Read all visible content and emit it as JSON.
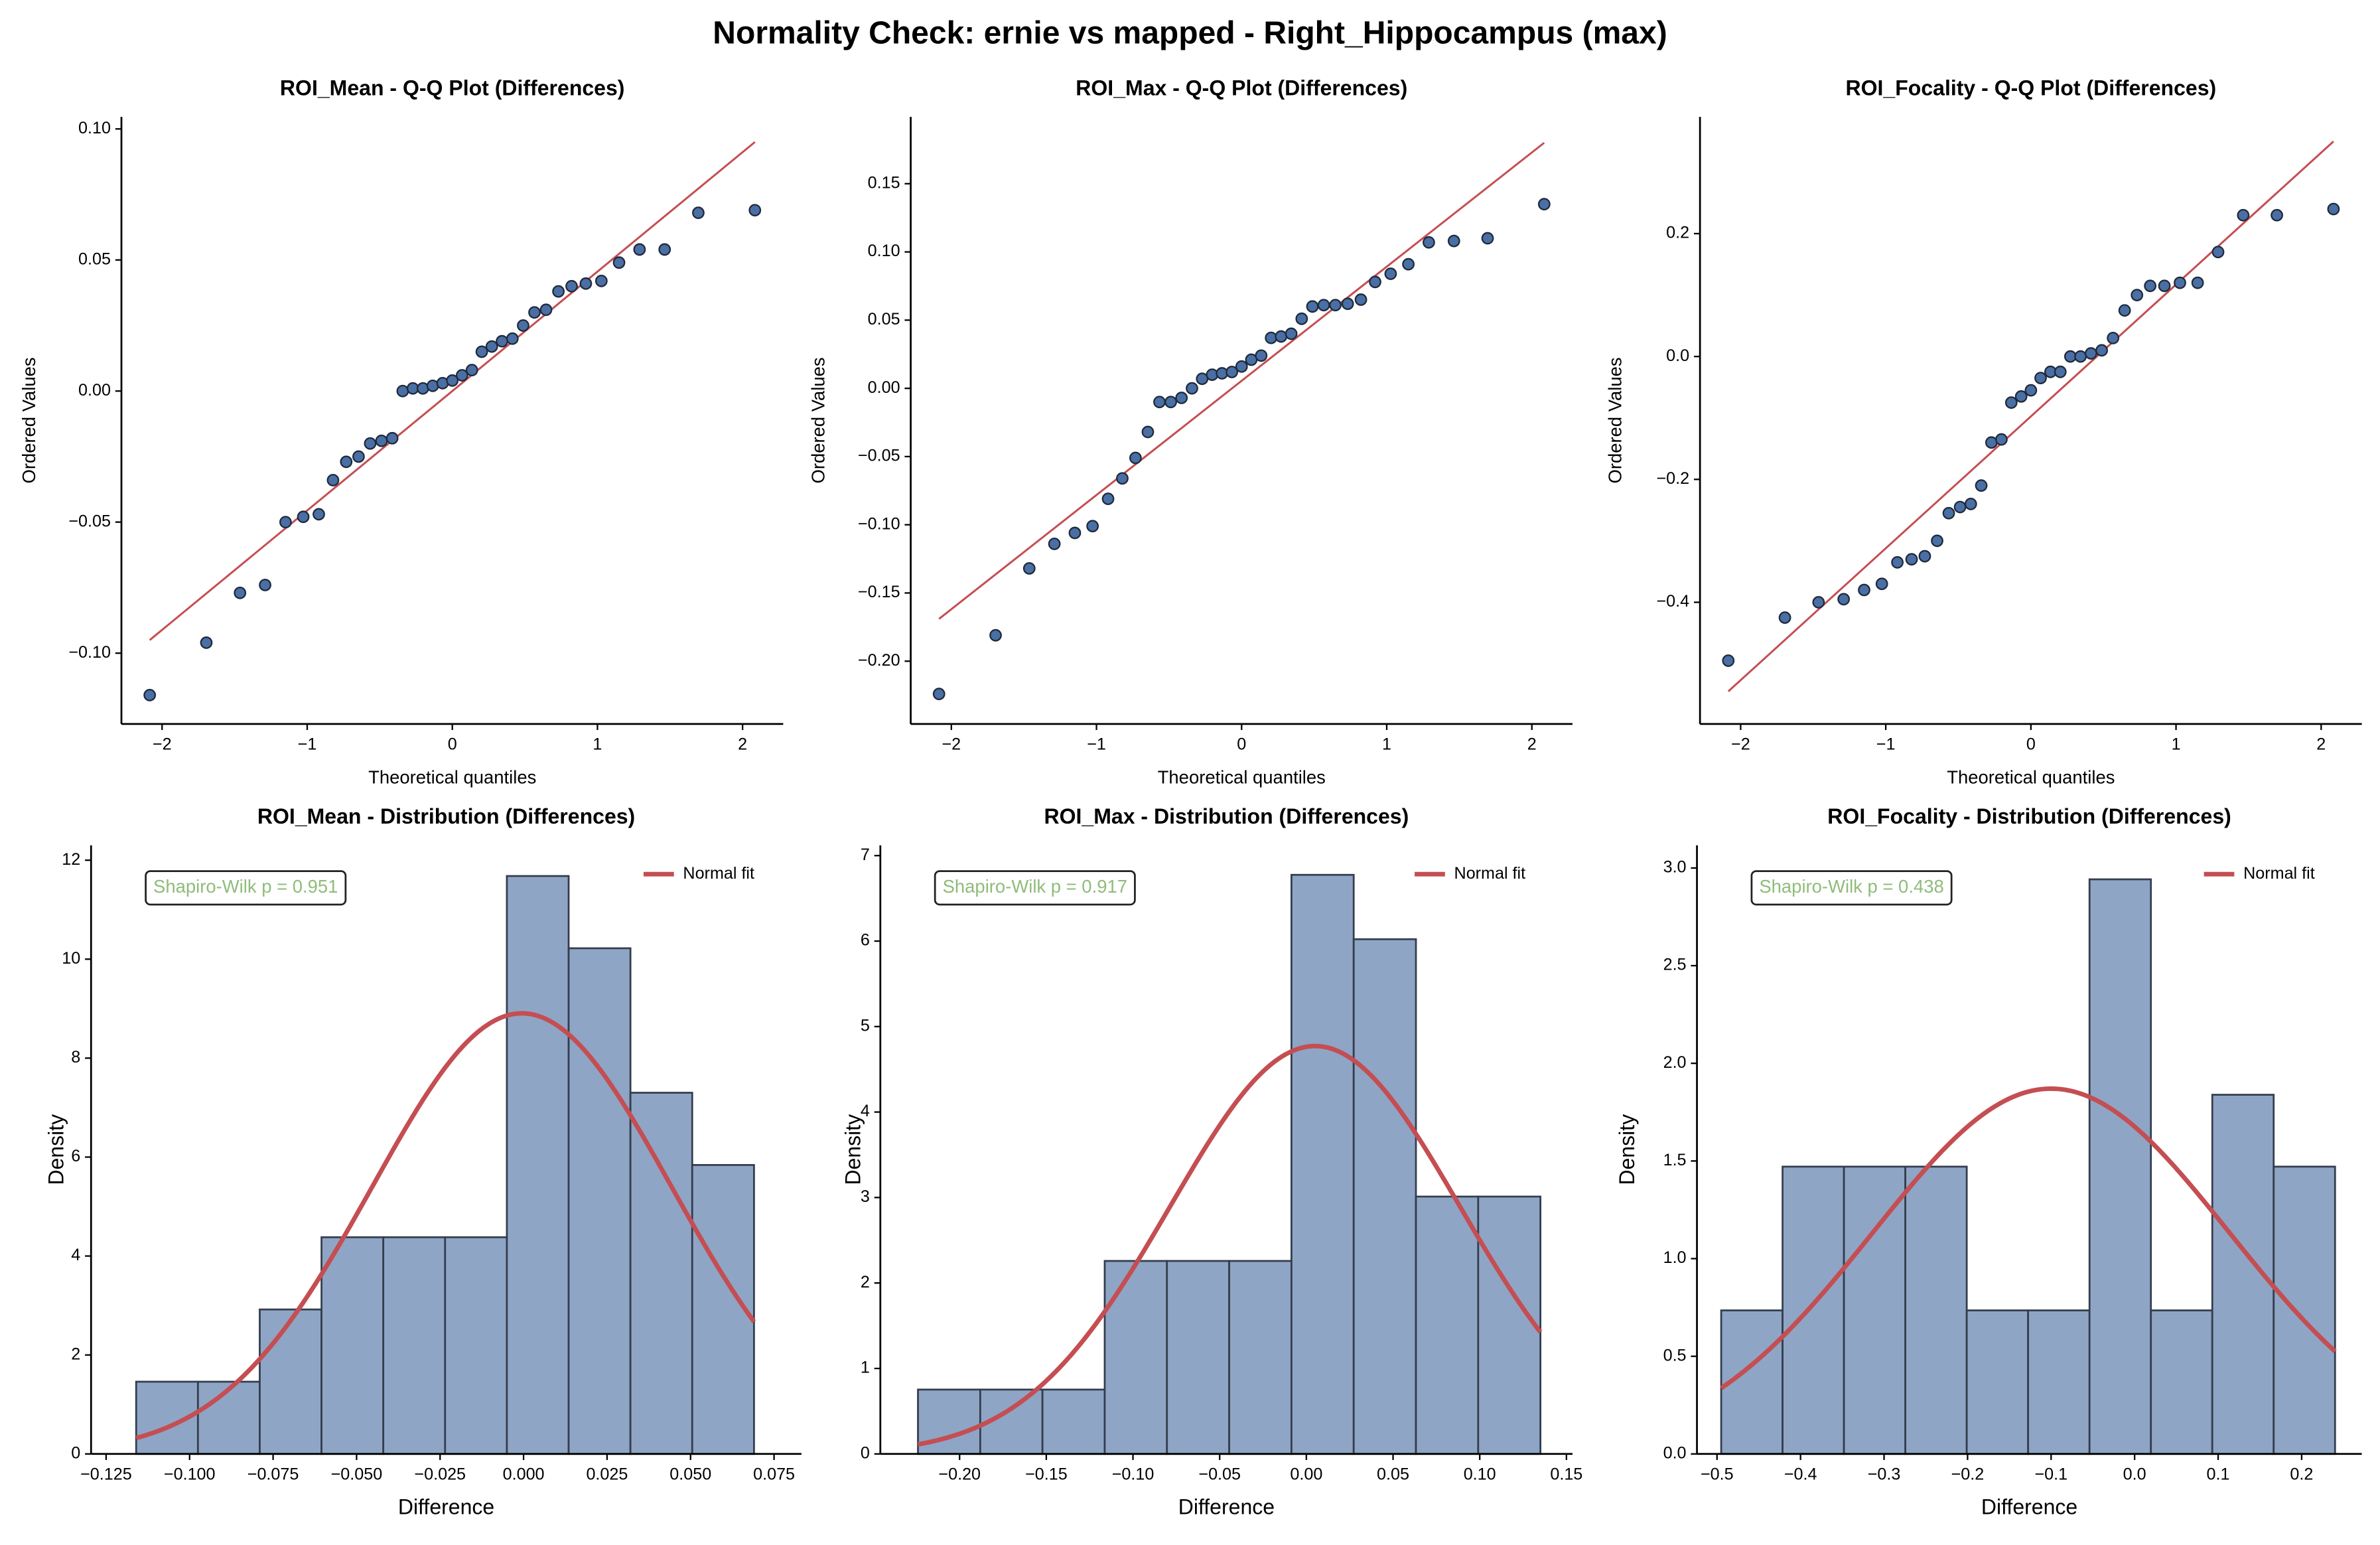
{
  "title": "Normality Check: ernie vs mapped - Right_Hippocampus (max)",
  "chart_data": [
    {
      "type": "qq",
      "title": "ROI_Mean - Q-Q Plot (Differences)",
      "xlabel": "Theoretical quantiles",
      "ylabel": "Ordered Values",
      "x": [
        -2.085,
        -1.695,
        -1.463,
        -1.29,
        -1.149,
        -1.027,
        -0.92,
        -0.822,
        -0.731,
        -0.646,
        -0.566,
        -0.488,
        -0.414,
        -0.342,
        -0.272,
        -0.203,
        -0.135,
        -0.067,
        0,
        0.067,
        0.135,
        0.203,
        0.272,
        0.342,
        0.414,
        0.488,
        0.566,
        0.646,
        0.731,
        0.822,
        0.92,
        1.027,
        1.149,
        1.29,
        1.463,
        1.695,
        2.085
      ],
      "values": [
        -0.116,
        -0.096,
        -0.077,
        -0.074,
        -0.05,
        -0.048,
        -0.047,
        -0.034,
        -0.027,
        -0.025,
        -0.02,
        -0.019,
        -0.018,
        0,
        0.001,
        0.001,
        0.002,
        0.003,
        0.004,
        0.006,
        0.008,
        0.015,
        0.017,
        0.019,
        0.02,
        0.025,
        0.03,
        0.031,
        0.038,
        0.04,
        0.041,
        0.042,
        0.049,
        0.054,
        0.054,
        0.068,
        0.069
      ],
      "fit_x": [
        -2.085,
        2.085
      ],
      "fit_values": [
        -0.095,
        0.095
      ],
      "color": "#4a6fa5",
      "fit_color": "#c44e52",
      "xlim": [
        -2.28,
        2.28
      ],
      "ylim": [
        -0.127,
        0.1046
      ],
      "xticks": [
        {
          "value": -2,
          "label": "−2"
        },
        {
          "value": -1,
          "label": "−1"
        },
        0,
        1,
        2
      ],
      "yticks": [
        {
          "value": -0.1,
          "label": "−0.10"
        },
        {
          "value": -0.05,
          "label": "−0.05"
        },
        {
          "value": 0,
          "label": "0.00"
        },
        0.05,
        {
          "value": 0.1,
          "label": "0.10"
        }
      ]
    },
    {
      "type": "qq",
      "title": "ROI_Max - Q-Q Plot (Differences)",
      "xlabel": "Theoretical quantiles",
      "ylabel": "Ordered Values",
      "x": [
        -2.085,
        -1.695,
        -1.463,
        -1.29,
        -1.149,
        -1.027,
        -0.92,
        -0.822,
        -0.731,
        -0.646,
        -0.566,
        -0.488,
        -0.414,
        -0.342,
        -0.272,
        -0.203,
        -0.135,
        -0.067,
        0,
        0.067,
        0.135,
        0.203,
        0.272,
        0.342,
        0.414,
        0.488,
        0.566,
        0.646,
        0.731,
        0.822,
        0.92,
        1.027,
        1.149,
        1.29,
        1.463,
        1.695,
        2.085
      ],
      "values": [
        -0.224,
        -0.181,
        -0.132,
        -0.114,
        -0.106,
        -0.101,
        -0.081,
        -0.066,
        -0.051,
        -0.032,
        -0.01,
        -0.01,
        -0.007,
        0,
        0.007,
        0.01,
        0.011,
        0.012,
        0.016,
        0.021,
        0.024,
        0.037,
        0.038,
        0.04,
        0.051,
        0.06,
        0.061,
        0.061,
        0.062,
        0.065,
        0.078,
        0.084,
        0.091,
        0.107,
        0.108,
        0.11,
        0.135
      ],
      "fit_x": [
        -2.085,
        2.085
      ],
      "fit_values": [
        -0.169,
        0.18
      ],
      "color": "#4a6fa5",
      "fit_color": "#c44e52",
      "xlim": [
        -2.28,
        2.28
      ],
      "ylim": [
        -0.246,
        0.199
      ],
      "xticks": [
        {
          "value": -2,
          "label": "−2"
        },
        {
          "value": -1,
          "label": "−1"
        },
        0,
        1,
        2
      ],
      "yticks": [
        {
          "value": -0.2,
          "label": "−0.20"
        },
        {
          "value": -0.15,
          "label": "−0.15"
        },
        {
          "value": -0.1,
          "label": "−0.10"
        },
        {
          "value": -0.05,
          "label": "−0.05"
        },
        {
          "value": 0,
          "label": "0.00"
        },
        0.05,
        {
          "value": 0.1,
          "label": "0.10"
        },
        0.15
      ]
    },
    {
      "type": "qq",
      "title": "ROI_Focality - Q-Q Plot (Differences)",
      "xlabel": "Theoretical quantiles",
      "ylabel": "Ordered Values",
      "x": [
        -2.085,
        -1.695,
        -1.463,
        -1.29,
        -1.149,
        -1.027,
        -0.92,
        -0.822,
        -0.731,
        -0.646,
        -0.566,
        -0.488,
        -0.414,
        -0.342,
        -0.272,
        -0.203,
        -0.135,
        -0.067,
        0,
        0.067,
        0.135,
        0.203,
        0.272,
        0.342,
        0.414,
        0.488,
        0.566,
        0.646,
        0.731,
        0.822,
        0.92,
        1.027,
        1.149,
        1.29,
        1.463,
        1.695,
        2.085
      ],
      "values": [
        -0.495,
        -0.425,
        -0.4,
        -0.395,
        -0.38,
        -0.37,
        -0.335,
        -0.33,
        -0.325,
        -0.3,
        -0.255,
        -0.245,
        -0.24,
        -0.21,
        -0.14,
        -0.135,
        -0.075,
        -0.065,
        -0.055,
        -0.035,
        -0.025,
        -0.025,
        0,
        0,
        0.005,
        0.01,
        0.03,
        0.075,
        0.1,
        0.115,
        0.115,
        0.12,
        0.12,
        0.17,
        0.23,
        0.23,
        0.24
      ],
      "fit_x": [
        -2.085,
        2.085
      ],
      "fit_values": [
        -0.545,
        0.35
      ],
      "color": "#4a6fa5",
      "fit_color": "#c44e52",
      "xlim": [
        -2.28,
        2.28
      ],
      "ylim": [
        -0.598,
        0.39
      ],
      "xticks": [
        {
          "value": -2,
          "label": "−2"
        },
        {
          "value": -1,
          "label": "−1"
        },
        0,
        1,
        2
      ],
      "yticks": [
        {
          "value": -0.4,
          "label": "−0.4"
        },
        {
          "value": -0.2,
          "label": "−0.2"
        },
        {
          "value": 0,
          "label": "0.0"
        },
        0.2
      ]
    },
    {
      "type": "histogram",
      "title": "ROI_Mean - Distribution (Differences)",
      "xlabel": "Difference",
      "ylabel": "Density",
      "bins": [
        -0.116,
        -0.0975,
        -0.079,
        -0.0605,
        -0.042,
        -0.0235,
        -0.005,
        0.0135,
        0.032,
        0.0505,
        0.069
      ],
      "values": [
        1.46,
        1.46,
        2.92,
        4.38,
        4.38,
        4.38,
        11.68,
        10.22,
        7.3,
        5.84
      ],
      "color": "#8fa5c5",
      "series": [
        {
          "name": "Normal fit",
          "color": "#c44e52",
          "mean": -0.0005,
          "std": 0.0448
        }
      ],
      "annotation": "Shapiro-Wilk p = 0.951",
      "annotation_color": "#8fbc7a",
      "legend": "upper right",
      "xlim": [
        -0.1295,
        0.0832
      ],
      "ylim": [
        0,
        12.3
      ],
      "xticks": [
        {
          "value": -0.125,
          "label": "−0.125"
        },
        {
          "value": -0.1,
          "label": "−0.100"
        },
        {
          "value": -0.075,
          "label": "−0.075"
        },
        {
          "value": -0.05,
          "label": "−0.050"
        },
        {
          "value": -0.025,
          "label": "−0.025"
        },
        {
          "value": 0,
          "label": "0.000"
        },
        0.025,
        {
          "value": 0.05,
          "label": "0.050"
        },
        0.075
      ],
      "yticks": [
        0,
        2,
        4,
        6,
        8,
        10,
        12
      ]
    },
    {
      "type": "histogram",
      "title": "ROI_Max - Distribution (Differences)",
      "xlabel": "Difference",
      "ylabel": "Density",
      "bins": [
        -0.224,
        -0.1881,
        -0.1522,
        -0.1163,
        -0.0804,
        -0.0445,
        -0.0086,
        0.0273,
        0.0632,
        0.0991,
        0.135
      ],
      "values": [
        0.753,
        0.753,
        0.753,
        2.258,
        2.258,
        2.258,
        6.775,
        6.022,
        3.011,
        3.011
      ],
      "color": "#8fa5c5",
      "series": [
        {
          "name": "Normal fit",
          "color": "#c44e52",
          "mean": 0.005,
          "std": 0.0836
        }
      ],
      "annotation": "Shapiro-Wilk p = 0.917",
      "annotation_color": "#8fbc7a",
      "legend": "upper right",
      "xlim": [
        -0.2457,
        0.1535
      ],
      "ylim": [
        0,
        7.12
      ],
      "xticks": [
        {
          "value": -0.2,
          "label": "−0.20"
        },
        {
          "value": -0.15,
          "label": "−0.15"
        },
        {
          "value": -0.1,
          "label": "−0.10"
        },
        {
          "value": -0.05,
          "label": "−0.05"
        },
        {
          "value": 0,
          "label": "0.00"
        },
        0.05,
        {
          "value": 0.1,
          "label": "0.10"
        },
        0.15
      ],
      "yticks": [
        0,
        1,
        2,
        3,
        4,
        5,
        6,
        7
      ]
    },
    {
      "type": "histogram",
      "title": "ROI_Focality - Distribution (Differences)",
      "xlabel": "Difference",
      "ylabel": "Density",
      "bins": [
        -0.495,
        -0.4215,
        -0.348,
        -0.2745,
        -0.201,
        -0.1275,
        -0.054,
        0.0195,
        0.093,
        0.1665,
        0.24
      ],
      "values": [
        0.735,
        1.471,
        1.471,
        1.471,
        0.735,
        0.735,
        2.942,
        0.735,
        1.839,
        1.471
      ],
      "color": "#8fa5c5",
      "series": [
        {
          "name": "Normal fit",
          "color": "#c44e52",
          "mean": -0.1,
          "std": 0.2133
        }
      ],
      "annotation": "Shapiro-Wilk p = 0.438",
      "annotation_color": "#8fbc7a",
      "legend": "upper right",
      "xlim": [
        -0.524,
        0.272
      ],
      "ylim": [
        0,
        3.116
      ],
      "xticks": [
        {
          "value": -0.5,
          "label": "−0.5"
        },
        {
          "value": -0.4,
          "label": "−0.4"
        },
        {
          "value": -0.3,
          "label": "−0.3"
        },
        {
          "value": -0.2,
          "label": "−0.2"
        },
        {
          "value": -0.1,
          "label": "−0.1"
        },
        {
          "value": 0,
          "label": "0.0"
        },
        0.1,
        0.2
      ],
      "yticks": [
        {
          "value": 0,
          "label": "0.0"
        },
        0.5,
        {
          "value": 1,
          "label": "1.0"
        },
        1.5,
        {
          "value": 2,
          "label": "2.0"
        },
        2.5,
        {
          "value": 3,
          "label": "3.0"
        }
      ]
    }
  ]
}
